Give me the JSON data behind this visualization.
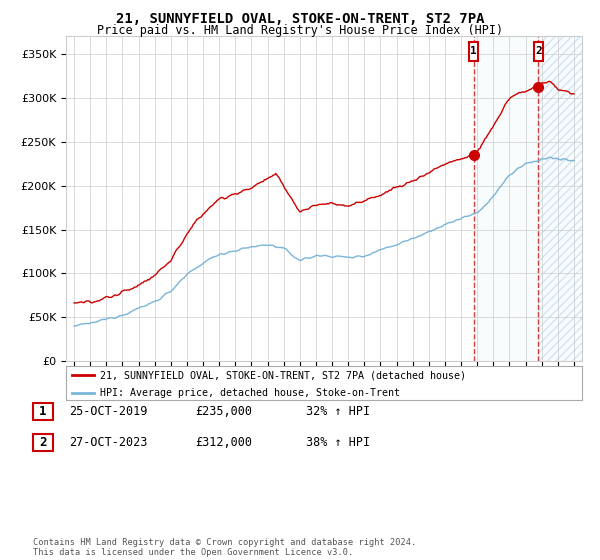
{
  "title": "21, SUNNYFIELD OVAL, STOKE-ON-TRENT, ST2 7PA",
  "subtitle": "Price paid vs. HM Land Registry's House Price Index (HPI)",
  "ylim": [
    0,
    370000
  ],
  "yticks": [
    0,
    50000,
    100000,
    150000,
    200000,
    250000,
    300000,
    350000
  ],
  "hpi_color": "#7ab4d8",
  "price_color": "#cc0000",
  "sale1_date": "25-OCT-2019",
  "sale1_price": 235000,
  "sale1_pct": "32%",
  "sale2_date": "27-OCT-2023",
  "sale2_price": 312000,
  "sale2_pct": "38%",
  "legend_label1": "21, SUNNYFIELD OVAL, STOKE-ON-TRENT, ST2 7PA (detached house)",
  "legend_label2": "HPI: Average price, detached house, Stoke-on-Trent",
  "footer": "Contains HM Land Registry data © Crown copyright and database right 2024.\nThis data is licensed under the Open Government Licence v3.0.",
  "background_color": "#ffffff",
  "grid_color": "#cccccc",
  "shade_color": "#ddeef7"
}
